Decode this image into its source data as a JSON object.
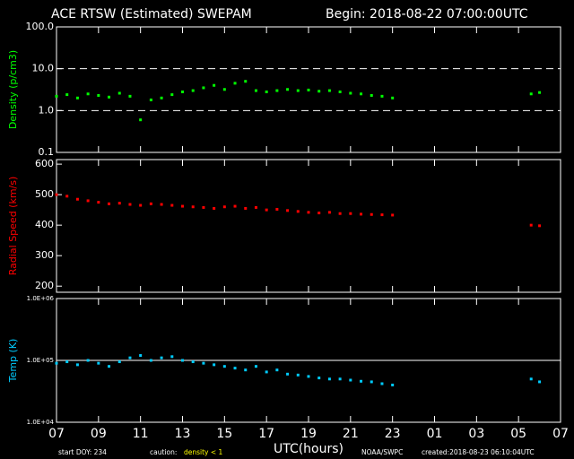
{
  "header": {
    "title": "ACE RTSW (Estimated) SWEPAM",
    "begin": "Begin: 2018-08-22 07:00:00UTC"
  },
  "x_axis": {
    "label": "UTC(hours)",
    "xlim": [
      0,
      24
    ],
    "xticks": [
      {
        "value": 0,
        "label": "07"
      },
      {
        "value": 2,
        "label": "09"
      },
      {
        "value": 4,
        "label": "11"
      },
      {
        "value": 6,
        "label": "13"
      },
      {
        "value": 8,
        "label": "15"
      },
      {
        "value": 10,
        "label": "17"
      },
      {
        "value": 12,
        "label": "19"
      },
      {
        "value": 14,
        "label": "21"
      },
      {
        "value": 16,
        "label": "23"
      },
      {
        "value": 18,
        "label": "01"
      },
      {
        "value": 20,
        "label": "03"
      },
      {
        "value": 22,
        "label": "05"
      },
      {
        "value": 24,
        "label": "07"
      }
    ]
  },
  "chart_data": [
    {
      "type": "scatter",
      "ylabel": "Density (p/cm3)",
      "color": "#00ff00",
      "log_scale": true,
      "ylim": [
        0.1,
        100
      ],
      "yticks": [
        0.1,
        {
          "value": 1,
          "label": "1.0"
        },
        {
          "value": 10,
          "label": "10.0"
        },
        {
          "value": 100,
          "label": "100.0"
        }
      ],
      "reference_lines": {
        "values": [
          1,
          10
        ],
        "style": "dashed"
      },
      "x": [
        0,
        0.5,
        1,
        1.5,
        2,
        2.5,
        3,
        3.5,
        4,
        4.5,
        5,
        5.5,
        6,
        6.5,
        7,
        7.5,
        8,
        8.5,
        9,
        9.5,
        10,
        10.5,
        11,
        11.5,
        12,
        12.5,
        13,
        13.5,
        14,
        14.5,
        15,
        15.5,
        16,
        22.6,
        23
      ],
      "values": [
        2.2,
        2.4,
        2.0,
        2.5,
        2.3,
        2.1,
        2.6,
        2.2,
        0.6,
        1.8,
        2.0,
        2.4,
        2.8,
        3.0,
        3.5,
        4.0,
        3.2,
        4.5,
        5.0,
        3.0,
        2.8,
        3.0,
        3.2,
        3.0,
        3.1,
        2.9,
        3.0,
        2.8,
        2.6,
        2.5,
        2.3,
        2.2,
        2.0,
        2.5,
        2.7
      ]
    },
    {
      "type": "scatter",
      "ylabel": "Radial Speed (km/s)",
      "color": "#ff0000",
      "log_scale": false,
      "ylim": [
        180,
        615
      ],
      "yticks": [
        200,
        300,
        400,
        500,
        600
      ],
      "x": [
        0,
        0.5,
        1,
        1.5,
        2,
        2.5,
        3,
        3.5,
        4,
        4.5,
        5,
        5.5,
        6,
        6.5,
        7,
        7.5,
        8,
        8.5,
        9,
        9.5,
        10,
        10.5,
        11,
        11.5,
        12,
        12.5,
        13,
        13.5,
        14,
        14.5,
        15,
        15.5,
        16,
        22.6,
        23
      ],
      "values": [
        500,
        495,
        485,
        480,
        475,
        470,
        472,
        468,
        465,
        470,
        468,
        465,
        462,
        460,
        458,
        455,
        460,
        462,
        455,
        458,
        450,
        452,
        448,
        445,
        442,
        440,
        442,
        438,
        438,
        436,
        435,
        434,
        433,
        400,
        398
      ]
    },
    {
      "type": "scatter",
      "ylabel": "Temp (K)",
      "color": "#00ccff",
      "log_scale": true,
      "ylim": [
        10000,
        1000000
      ],
      "yticks": [
        {
          "value": 10000,
          "label": "1.0E+04"
        },
        {
          "value": 100000,
          "label": "1.0E+05"
        },
        {
          "value": 1000000,
          "label": "1.0E+06"
        }
      ],
      "reference_lines": {
        "values": [
          100000
        ],
        "style": "solid"
      },
      "x": [
        0,
        0.5,
        1,
        1.5,
        2,
        2.5,
        3,
        3.5,
        4,
        4.5,
        5,
        5.5,
        6,
        6.5,
        7,
        7.5,
        8,
        8.5,
        9,
        9.5,
        10,
        10.5,
        11,
        11.5,
        12,
        12.5,
        13,
        13.5,
        14,
        14.5,
        15,
        15.5,
        16,
        22.6,
        23
      ],
      "values": [
        90000,
        95000,
        85000,
        100000,
        90000,
        80000,
        95000,
        110000,
        120000,
        100000,
        110000,
        115000,
        100000,
        95000,
        90000,
        85000,
        80000,
        75000,
        70000,
        80000,
        65000,
        70000,
        60000,
        58000,
        55000,
        52000,
        50000,
        50000,
        48000,
        46000,
        45000,
        42000,
        40000,
        50000,
        45000
      ]
    }
  ],
  "footer": {
    "doy": "start DOY: 234",
    "caution": "caution:",
    "caution_note": "density < 1",
    "source": "NOAA/SWPC",
    "created": "created:2018-08-23 06:10:04UTC"
  }
}
